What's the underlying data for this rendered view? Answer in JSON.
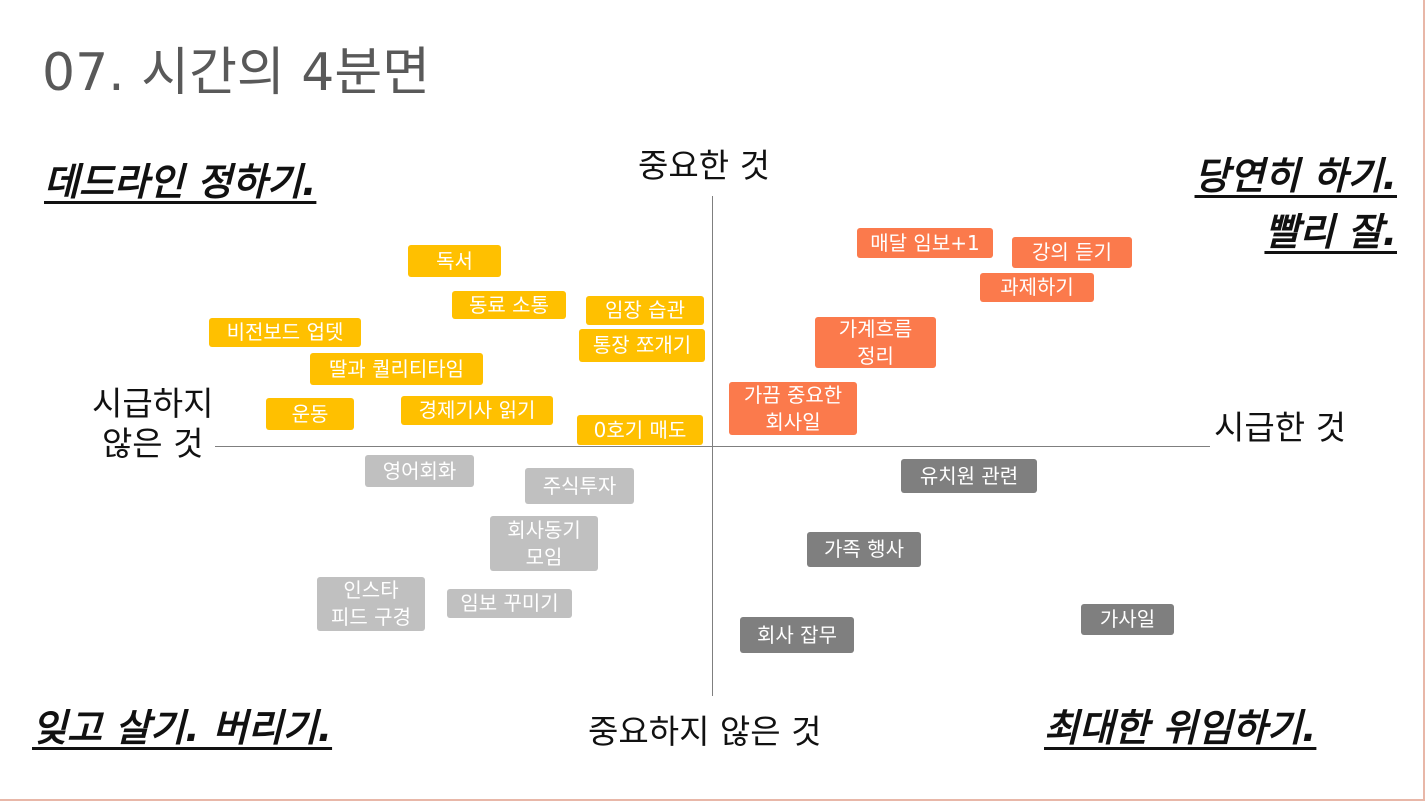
{
  "title": "07. 시간의 4분면",
  "axes": {
    "top": "중요한 것",
    "bottom": "중요하지 않은 것",
    "left_line1": "시급하지",
    "left_line2": "않은 것",
    "right": "시급한 것"
  },
  "quadrants": {
    "top_left": "데드라인 정하기.",
    "top_right_line1": "당연히 하기.",
    "top_right_line2": "빨리 잘.",
    "bottom_left": "잊고 살기. 버리기.",
    "bottom_right": "최대한 위임하기."
  },
  "colors": {
    "important_not_urgent": "#ffc000",
    "important_urgent": "#fb7a4c",
    "not_important_not_urgent": "#c0c0c0",
    "not_important_urgent": "#7f7f7f"
  },
  "tags": {
    "yellow": [
      "독서",
      "동료 소통",
      "임장 습관",
      "비전보드 업뎃",
      "통장 쪼개기",
      "딸과 퀄리티타임",
      "운동",
      "경제기사 읽기",
      "0호기 매도"
    ],
    "orange": [
      "매달 임보+1",
      "강의 듣기",
      "과제하기",
      "가계흐름",
      "정리",
      "가끔 중요한",
      "회사일"
    ],
    "lightgray": [
      "영어회화",
      "주식투자",
      "회사동기",
      "모임",
      "인스타",
      "피드 구경",
      "임보 꾸미기"
    ],
    "darkgray": [
      "유치원 관련",
      "가족 행사",
      "회사 잡무",
      "가사일"
    ]
  }
}
